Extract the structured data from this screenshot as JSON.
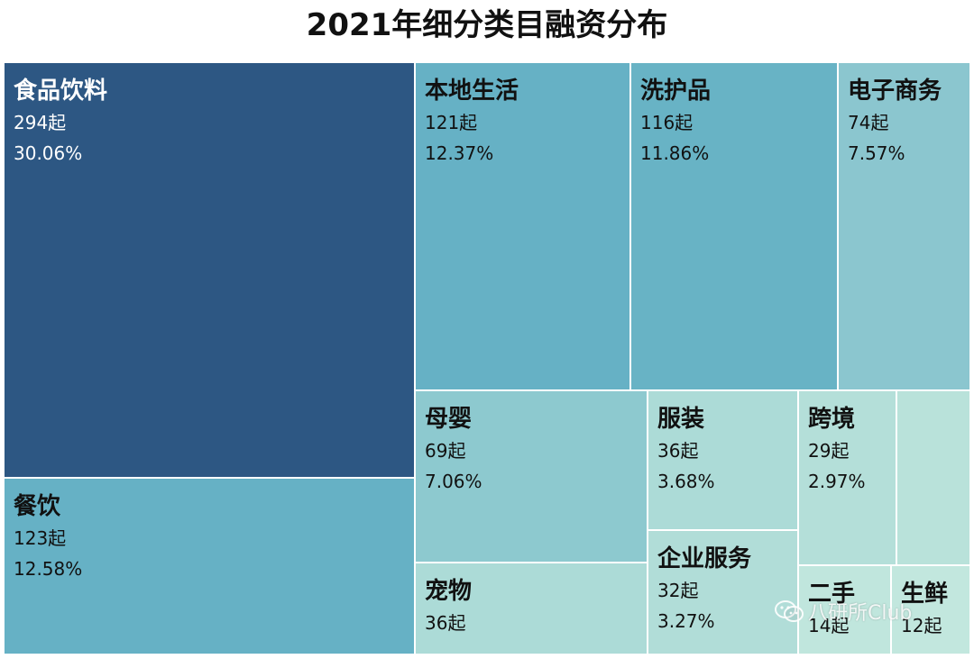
{
  "chart_data": {
    "type": "treemap",
    "title": "2021年细分类目融资分布",
    "items": [
      {
        "name": "食品饮料",
        "count": "294起",
        "percent": "30.06%",
        "value": 294,
        "color": "#2d5783",
        "dark": true
      },
      {
        "name": "餐饮",
        "count": "123起",
        "percent": "12.58%",
        "value": 123,
        "color": "#66b1c5"
      },
      {
        "name": "本地生活",
        "count": "121起",
        "percent": "12.37%",
        "value": 121,
        "color": "#66b1c5"
      },
      {
        "name": "洗护品",
        "count": "116起",
        "percent": "11.86%",
        "value": 116,
        "color": "#68b3c5"
      },
      {
        "name": "电子商务",
        "count": "74起",
        "percent": "7.57%",
        "value": 74,
        "color": "#8bc6cf"
      },
      {
        "name": "母婴",
        "count": "69起",
        "percent": "7.06%",
        "value": 69,
        "color": "#8dc9cf"
      },
      {
        "name": "服装",
        "count": "36起",
        "percent": "3.68%",
        "value": 36,
        "color": "#acdbd7"
      },
      {
        "name": "宠物",
        "count": "36起",
        "percent": "",
        "value": 36,
        "color": "#acdbd7"
      },
      {
        "name": "企业服务",
        "count": "32起",
        "percent": "3.27%",
        "value": 32,
        "color": "#b1ddd8"
      },
      {
        "name": "跨境",
        "count": "29起",
        "percent": "2.97%",
        "value": 29,
        "color": "#b4dfd9"
      },
      {
        "name": "",
        "count": "",
        "percent": "",
        "value": 26,
        "color": "#b9e2da"
      },
      {
        "name": "二手",
        "count": "14起",
        "percent": "",
        "value": 14,
        "color": "#c0e6dd"
      },
      {
        "name": "生鲜",
        "count": "12起",
        "percent": "",
        "value": 12,
        "color": "#c2e7de"
      }
    ]
  },
  "watermark": {
    "text": "八研所Club",
    "icon": "wechat-icon"
  }
}
